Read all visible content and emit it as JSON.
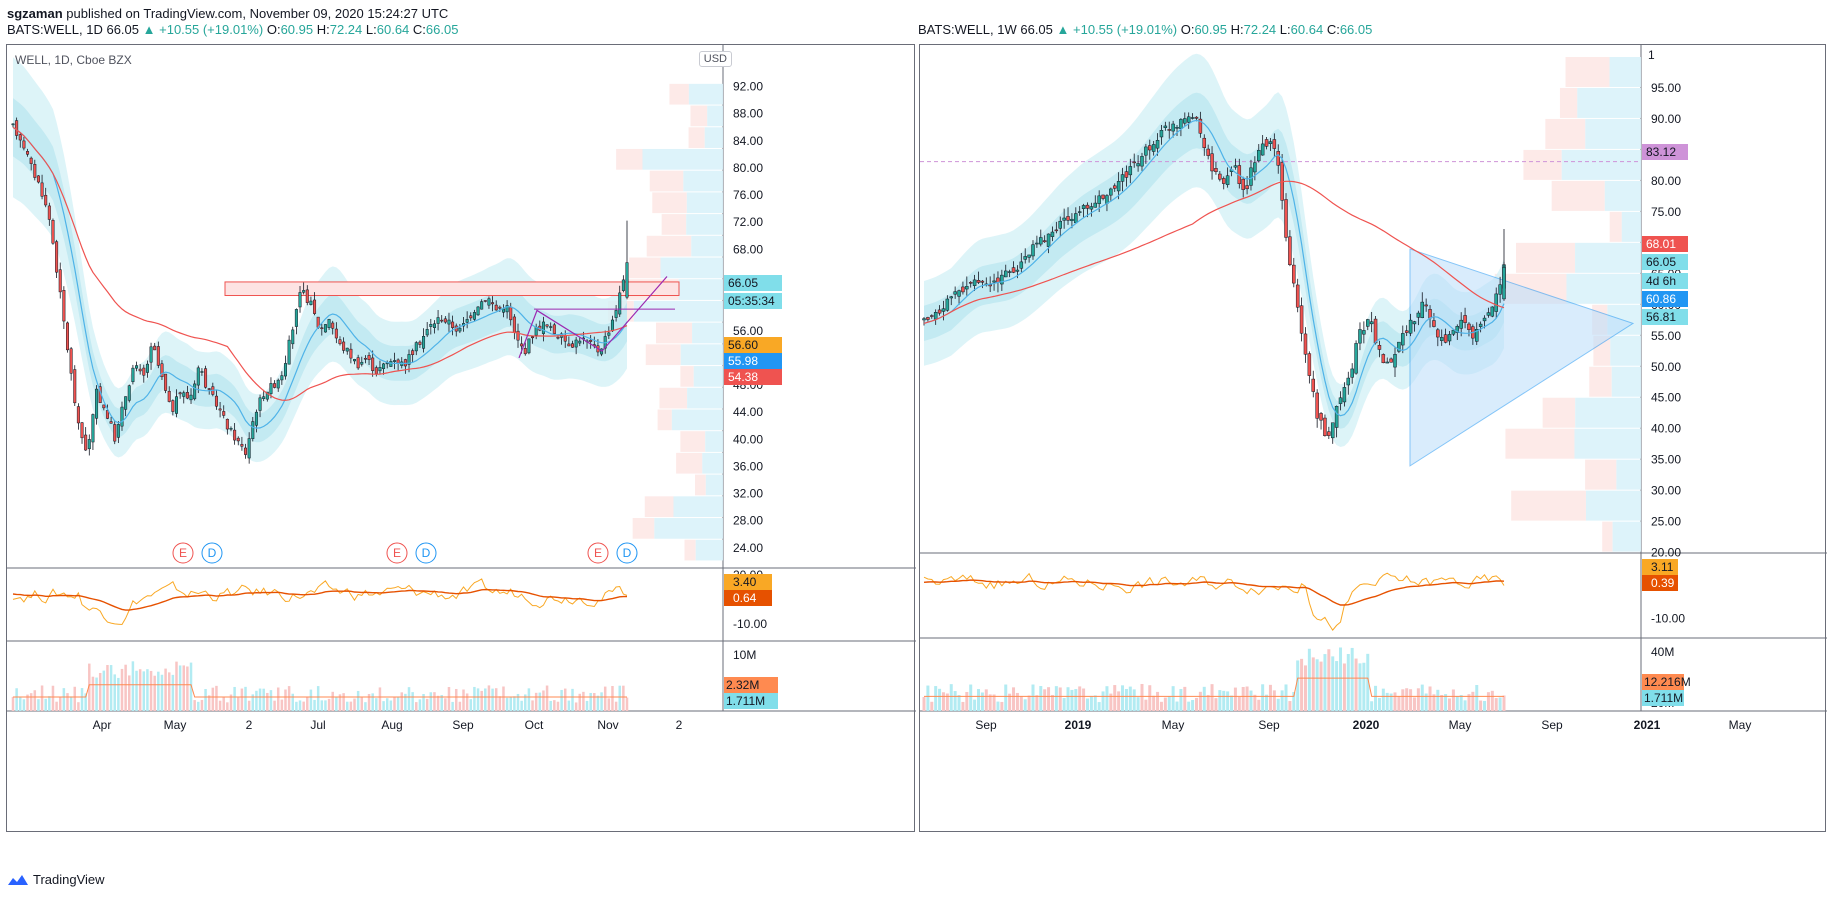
{
  "header": {
    "author": "sgzaman",
    "published": "published on TradingView.com, November 09, 2020 15:24:27 UTC",
    "left_symbol": "BATS:WELL, 1D",
    "right_symbol": "BATS:WELL, 1W",
    "price": "66.05",
    "change": "▲ +10.55 (+19.01%)",
    "o_label": "O:",
    "o": "60.95",
    "h_label": "H:",
    "h": "72.24",
    "l_label": "L:",
    "l": "60.64",
    "c_label": "C:",
    "c": "66.05"
  },
  "footer": {
    "brand": "TradingView"
  },
  "colors": {
    "up": "#26a69a",
    "down": "#ef5350",
    "ma_slow": "#ef5350",
    "ma_fast": "#4fb3e8",
    "band": "#d4f1f6",
    "purple": "#9c27b0"
  },
  "left_panel": {
    "title": "WELL, 1D, Cboe BZX",
    "currency": "USD",
    "events": [
      "E",
      "D",
      "E",
      "D",
      "E",
      "D"
    ],
    "price_ticks": [
      "92.00",
      "88.00",
      "84.00",
      "80.00",
      "76.00",
      "72.00",
      "68.00",
      "60.00",
      "56.00",
      "52.00",
      "48.00",
      "44.00",
      "40.00",
      "36.00",
      "32.00",
      "28.00",
      "24.00",
      "20.00"
    ],
    "price_tags": [
      {
        "label": "66.05",
        "color": "#80deea",
        "text": "#131722"
      },
      {
        "label": "05:35:34",
        "color": "#80deea",
        "text": "#131722"
      },
      {
        "label": "56.60",
        "color": "#f9a825",
        "text": "#131722"
      },
      {
        "label": "55.98",
        "color": "#2196f3",
        "text": "#ffffff"
      },
      {
        "label": "54.38",
        "color": "#ef5350",
        "text": "#ffffff"
      }
    ],
    "osc_ticks": [
      "-10.00"
    ],
    "osc_tags": [
      {
        "label": "3.40",
        "color": "#f9a825",
        "text": "#131722"
      },
      {
        "label": "0.64",
        "color": "#e65100",
        "text": "#ffffff"
      }
    ],
    "vol_ticks": [
      "10M",
      "0"
    ],
    "vol_tags": [
      {
        "label": "2.32M",
        "color": "#ff8a50",
        "text": "#131722"
      },
      {
        "label": "1.711M",
        "color": "#80deea",
        "text": "#131722"
      }
    ],
    "x_ticks": [
      "Apr",
      "May",
      "2",
      "Jul",
      "Aug",
      "Sep",
      "Oct",
      "Nov",
      "2"
    ]
  },
  "right_panel": {
    "currency": "1",
    "price_ticks": [
      "95.00",
      "90.00",
      "85.00",
      "80.00",
      "75.00",
      "70.00",
      "65.00",
      "60.00",
      "55.00",
      "50.00",
      "45.00",
      "40.00",
      "35.00",
      "30.00",
      "25.00",
      "20.00"
    ],
    "price_tags": [
      {
        "label": "83.12",
        "color": "#ce93d8",
        "text": "#131722"
      },
      {
        "label": "68.01",
        "color": "#ef5350",
        "text": "#ffffff"
      },
      {
        "label": "66.05",
        "color": "#80deea",
        "text": "#131722"
      },
      {
        "label": "4d 6h",
        "color": "#80deea",
        "text": "#131722"
      },
      {
        "label": "60.86",
        "color": "#2196f3",
        "text": "#ffffff"
      },
      {
        "label": "56.81",
        "color": "#80deea",
        "text": "#131722"
      }
    ],
    "osc_ticks": [
      "-10.00"
    ],
    "osc_tags": [
      {
        "label": "3.11",
        "color": "#f9a825",
        "text": "#131722"
      },
      {
        "label": "0.39",
        "color": "#e65100",
        "text": "#ffffff"
      }
    ],
    "vol_ticks": [
      "40M",
      "20M"
    ],
    "vol_tags": [
      {
        "label": "12.216M",
        "color": "#ff8a50",
        "text": "#131722"
      },
      {
        "label": "1.711M",
        "color": "#80deea",
        "text": "#131722"
      }
    ],
    "x_ticks": [
      "Sep",
      "2019",
      "May",
      "Sep",
      "2020",
      "May",
      "Sep",
      "2021",
      "May"
    ]
  },
  "chart_data": [
    {
      "type": "candlestick",
      "title": "WELL, 1D, Cboe BZX",
      "interval": "1D",
      "ylim": [
        20,
        94
      ],
      "x_ticks": [
        "Apr",
        "May",
        "2",
        "Jul",
        "Aug",
        "Sep",
        "Oct",
        "Nov",
        "2"
      ],
      "last_close": 66.05,
      "close_path": [
        86,
        84,
        80,
        77,
        72,
        62,
        52,
        42,
        38,
        47,
        44,
        40,
        46,
        51,
        49,
        54,
        49,
        44,
        47,
        46,
        51,
        47,
        45,
        42,
        40,
        38,
        44,
        47,
        48,
        50,
        56,
        62,
        60,
        56,
        58,
        54,
        53,
        51,
        52,
        50,
        51,
        52,
        51,
        53,
        55,
        57,
        58,
        57,
        56,
        58,
        60,
        61,
        59,
        60,
        55,
        53,
        56,
        57,
        56,
        55,
        54,
        55,
        54,
        53,
        56,
        60,
        66
      ],
      "resistance_zone": [
        61.2,
        63.2
      ],
      "indicators": [
        "moving average (red, slow)",
        "moving average (blue, fast)",
        "envelope band",
        "volume profile",
        "oscillator",
        "volume"
      ]
    },
    {
      "type": "candlestick",
      "interval": "1W",
      "ylim": [
        18,
        100
      ],
      "x_ticks": [
        "Sep",
        "2019",
        "May",
        "Sep",
        "2020",
        "May",
        "Sep",
        "2021",
        "May"
      ],
      "last_close": 66.05,
      "close_path": [
        57,
        58,
        60,
        62,
        63,
        64,
        63,
        64,
        65,
        66,
        68,
        70,
        71,
        73,
        74,
        75,
        76,
        77,
        78,
        80,
        82,
        84,
        86,
        88,
        89,
        90,
        91,
        86,
        81,
        80,
        82,
        78,
        84,
        86,
        85,
        70,
        60,
        50,
        42,
        38,
        45,
        48,
        55,
        58,
        52,
        50,
        55,
        57,
        60,
        58,
        54,
        55,
        57,
        55,
        58,
        60,
        66
      ],
      "horizontal_level": 83.12,
      "indicators": [
        "moving average (red)",
        "moving average (blue)",
        "envelope band",
        "triangle pattern",
        "volume profile",
        "oscillator",
        "volume"
      ]
    }
  ]
}
